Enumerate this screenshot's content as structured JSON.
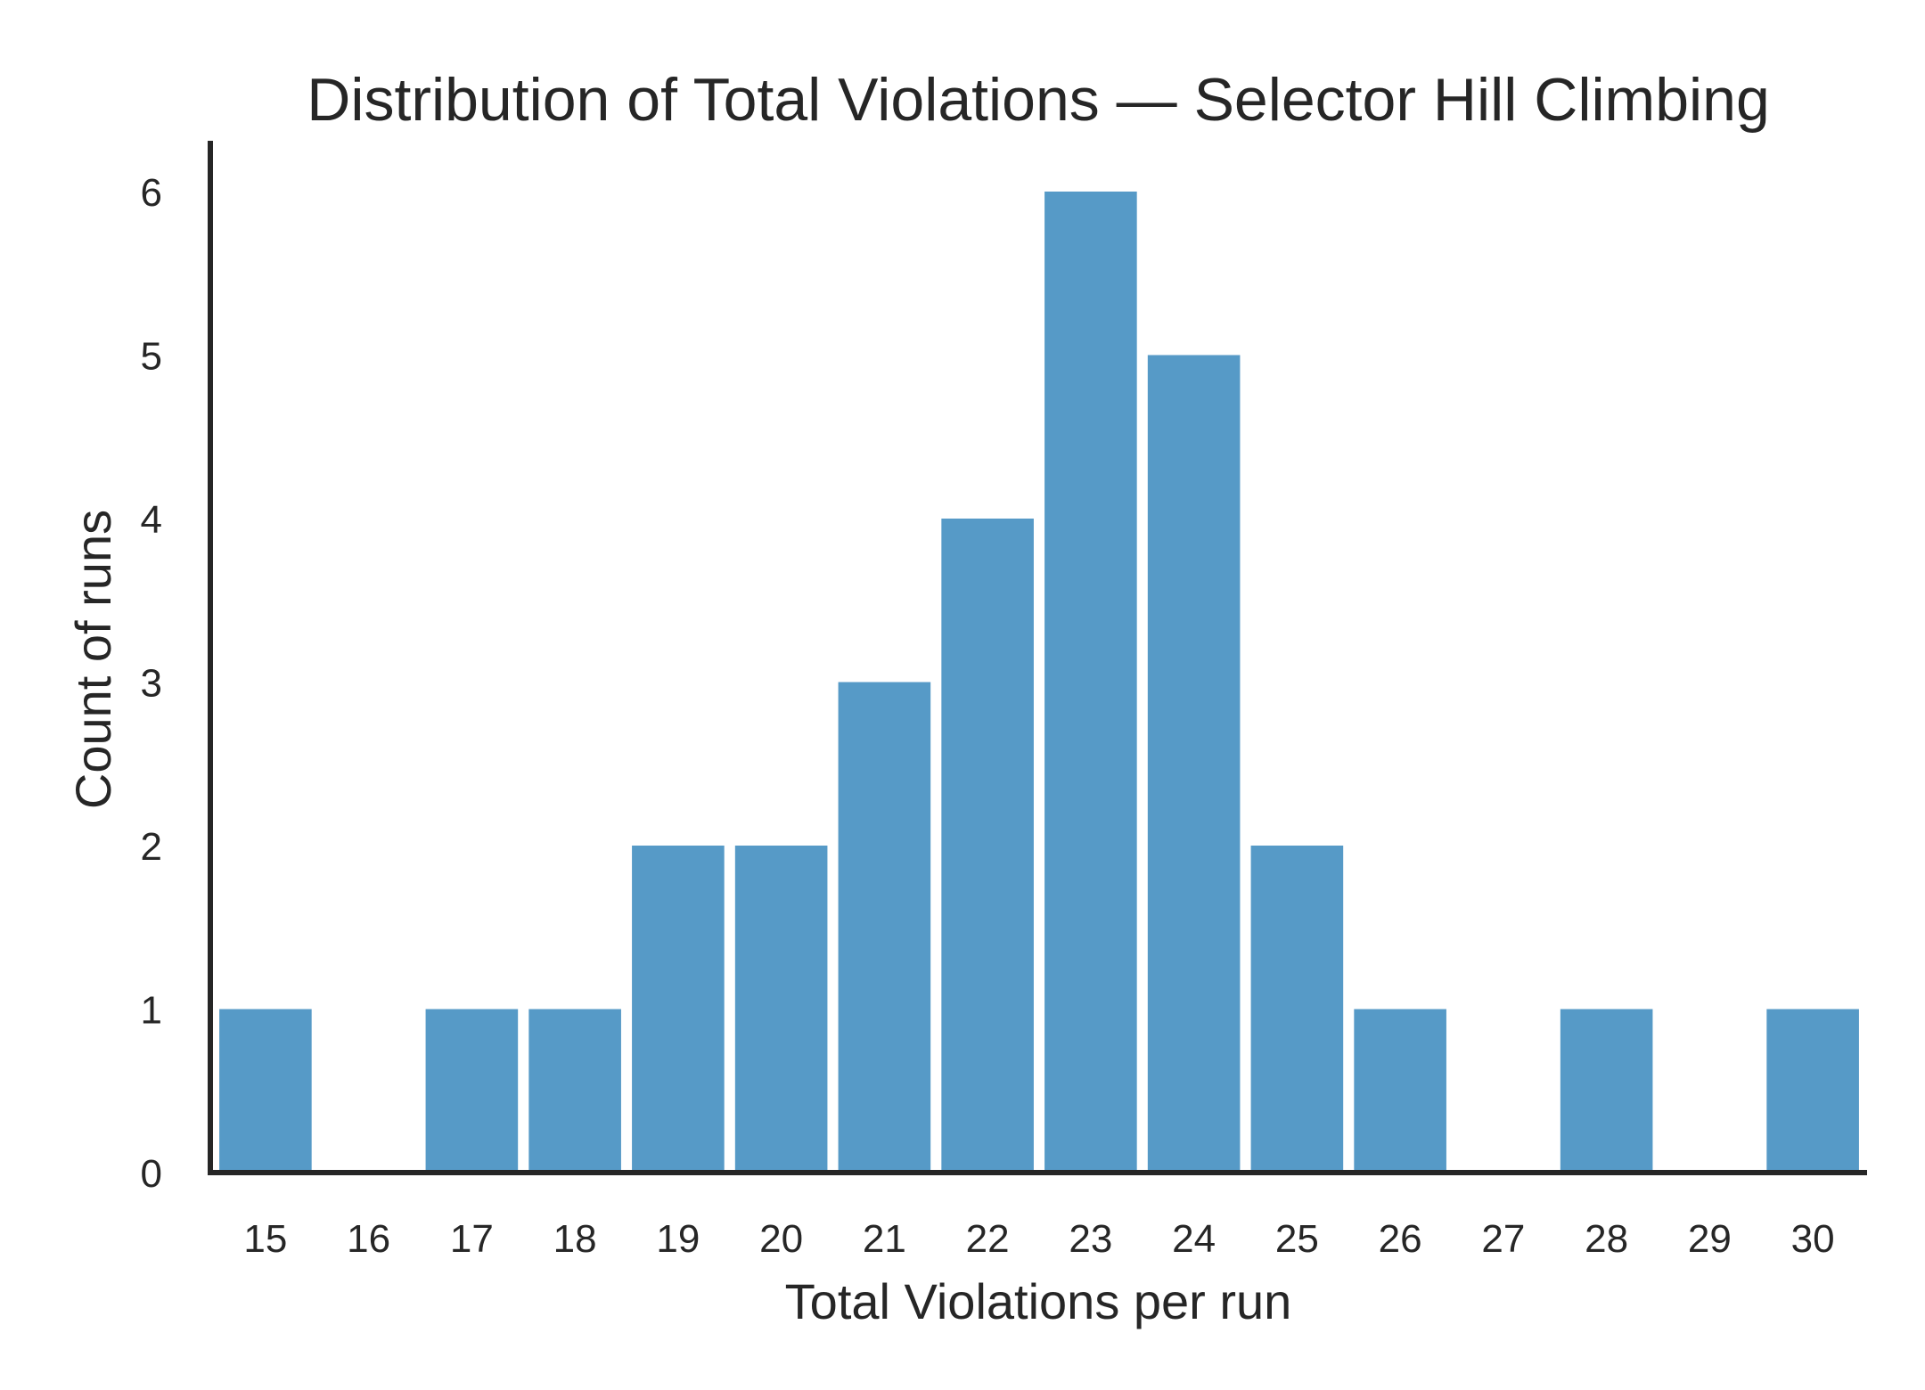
{
  "chart_data": {
    "type": "bar",
    "title": "Distribution of Total Violations — Selector Hill Climbing",
    "xlabel": "Total Violations per run",
    "ylabel": "Count of runs",
    "categories": [
      "15",
      "16",
      "17",
      "18",
      "19",
      "20",
      "21",
      "22",
      "23",
      "24",
      "25",
      "26",
      "27",
      "28",
      "29",
      "30"
    ],
    "values": [
      1,
      0,
      1,
      1,
      2,
      2,
      3,
      4,
      6,
      5,
      2,
      1,
      0,
      1,
      0,
      1
    ],
    "yticks": [
      0,
      1,
      2,
      3,
      4,
      5,
      6
    ],
    "ylim": [
      0,
      6.3
    ],
    "grid": false,
    "bar_color": "#569AC7",
    "axis_color": "#262626"
  }
}
